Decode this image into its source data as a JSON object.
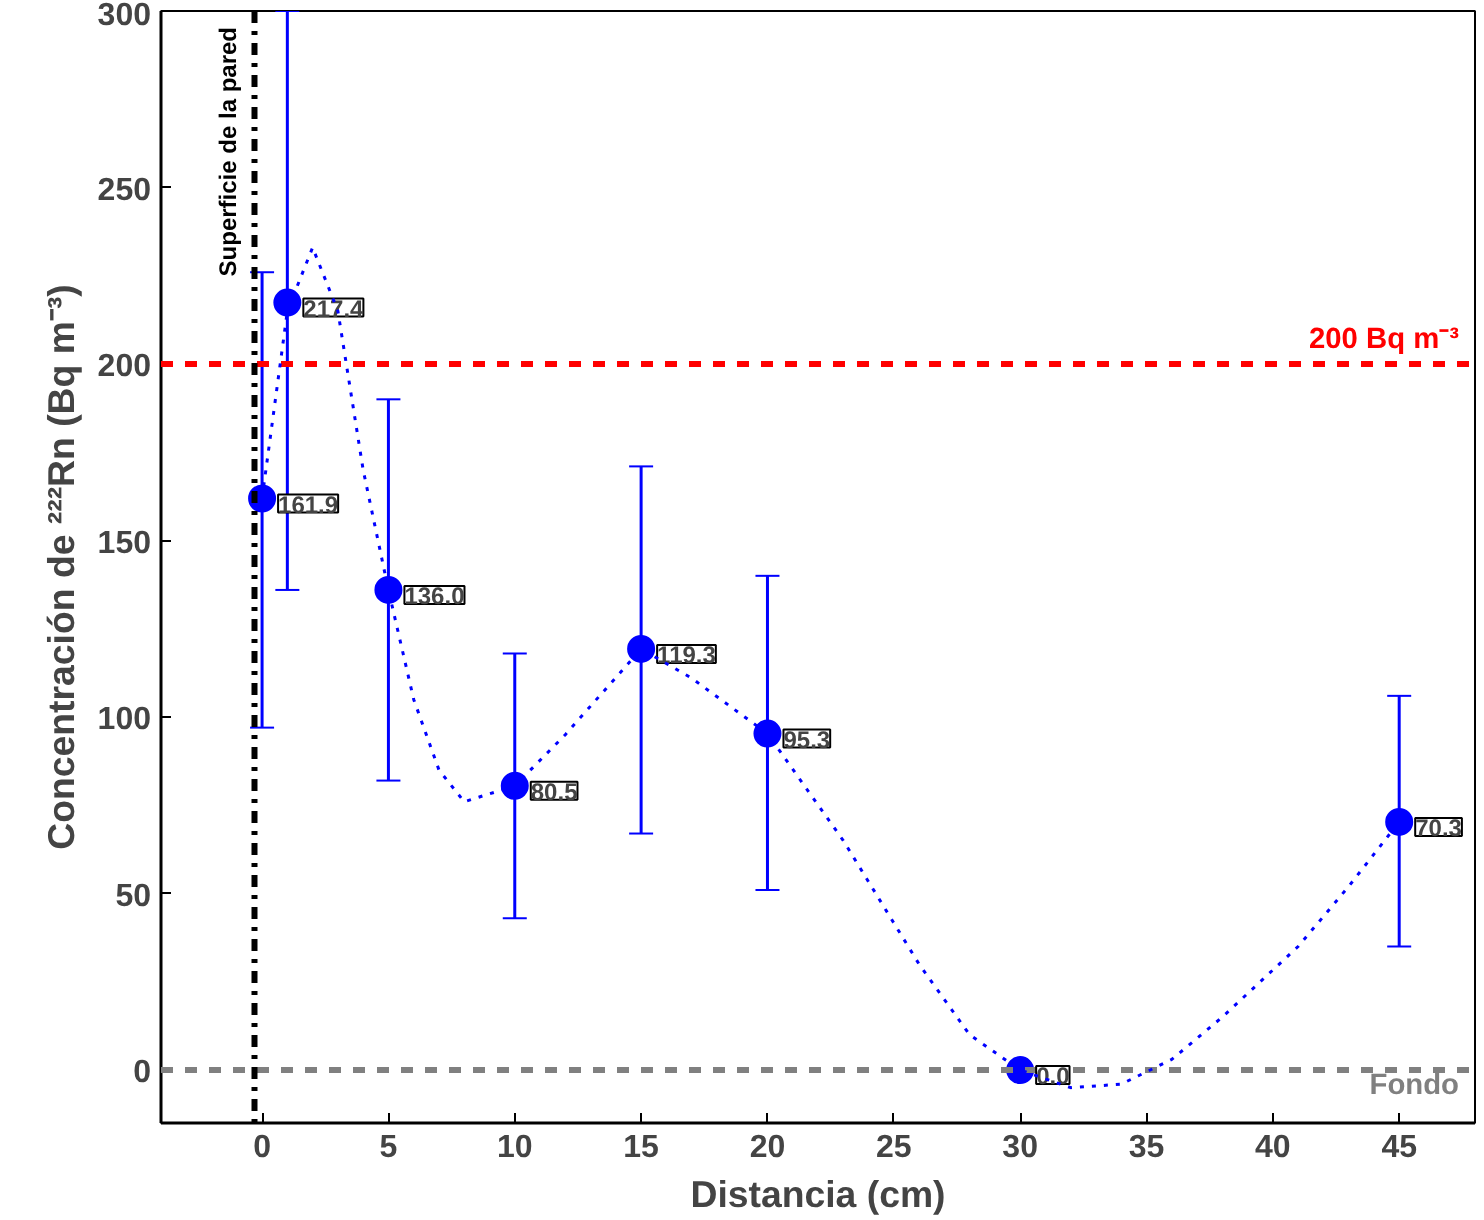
{
  "chart_data": {
    "type": "scatter",
    "xlabel": "Distancia (cm)",
    "ylabel": "Concentración de ²²²Rn (Bq m⁻³)",
    "xlim": [
      -4,
      48
    ],
    "ylim": [
      -15,
      300
    ],
    "xticks": [
      0,
      5,
      10,
      15,
      20,
      25,
      30,
      35,
      40,
      45
    ],
    "yticks": [
      0,
      50,
      100,
      150,
      200,
      250,
      300
    ],
    "grid": false,
    "marker": "circle",
    "series": [
      {
        "color": "#0000ff",
        "x": [
          0,
          1,
          5,
          10,
          15,
          20,
          30,
          45
        ],
        "values": [
          161.9,
          217.4,
          136.0,
          80.5,
          119.3,
          95.3,
          0.0,
          70.3
        ],
        "value_labels": [
          "161.9",
          "217.4",
          "136.0",
          "80.5",
          "119.3",
          "95.3",
          "0.0",
          "70.3"
        ],
        "errors": [
          [
            97,
            226
          ],
          [
            136,
            300
          ],
          [
            82,
            190
          ],
          [
            43,
            118
          ],
          [
            67,
            171
          ],
          [
            51,
            140
          ],
          null,
          [
            35,
            106
          ]
        ]
      },
      {
        "type": "line",
        "color": "#0000ff",
        "line_style": "dotted",
        "marker": "none",
        "x": [
          0,
          1,
          2,
          3,
          4,
          5,
          6,
          7,
          8,
          10,
          12,
          15,
          17,
          20,
          23,
          26,
          28,
          30,
          32,
          34,
          36,
          38,
          41,
          43,
          45
        ],
        "values": [
          162,
          215,
          233,
          215,
          170,
          136,
          105,
          85,
          76,
          80.5,
          95,
          119.3,
          111,
          95.3,
          65,
          30,
          10,
          0,
          -5,
          -4,
          3,
          15,
          35,
          52,
          70.3
        ]
      }
    ],
    "ref_lines": [
      {
        "axis": "y",
        "value": 200,
        "label": "200 Bq m⁻³",
        "color": "#ff0000",
        "line_style": "dashed"
      },
      {
        "axis": "y",
        "value": 0,
        "label": "Fondo",
        "color": "#808080",
        "line_style": "dashed"
      },
      {
        "axis": "x",
        "value": -0.3,
        "label": "Superficie de la pared",
        "color": "#000000",
        "line_style": "dashdot"
      }
    ]
  }
}
